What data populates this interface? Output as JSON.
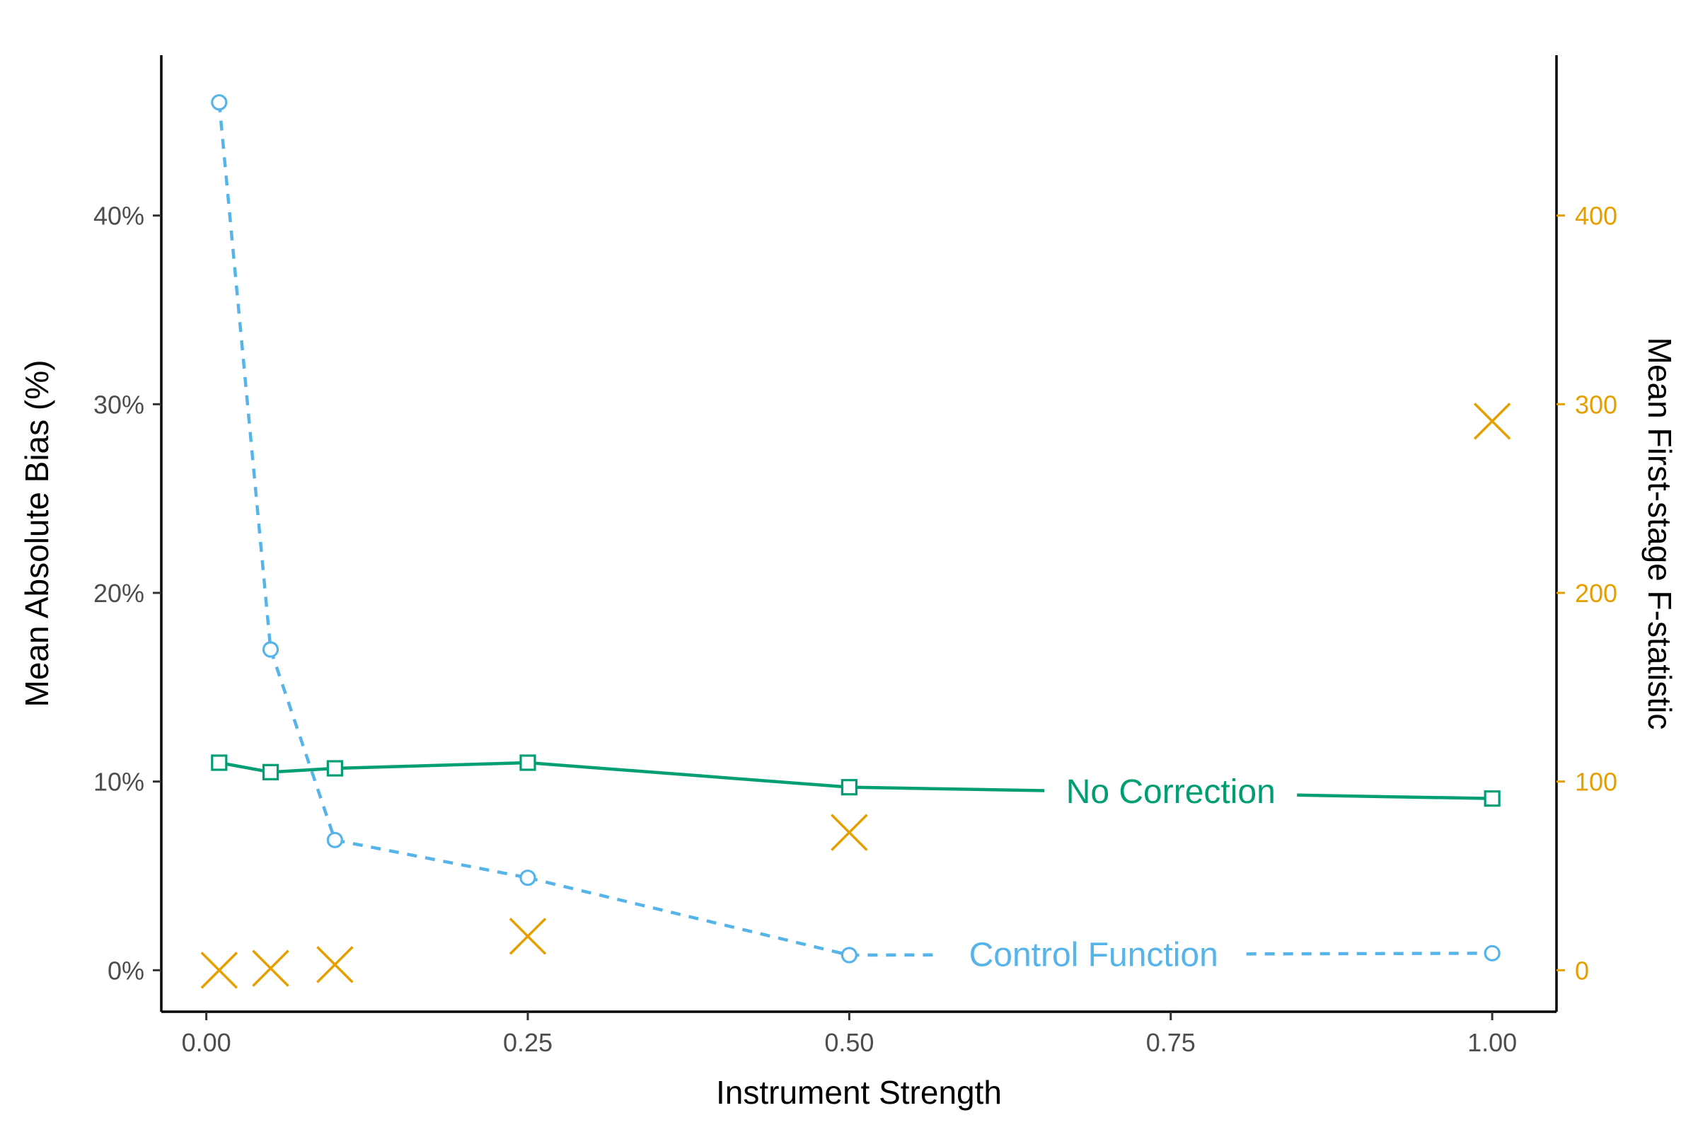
{
  "chart_data": {
    "type": "line",
    "x": [
      0.01,
      0.05,
      0.1,
      0.25,
      0.5,
      1.0
    ],
    "xlabel": "Instrument Strength",
    "ylabel": "Mean Absolute Bias (%)",
    "ylabel_right": "Mean First-stage F-statistic",
    "xlim": [
      -0.035,
      1.05
    ],
    "ylim": [
      -0.022,
      0.485
    ],
    "ylim_right": [
      -22,
      485
    ],
    "x_ticks": [
      0.0,
      0.25,
      0.5,
      0.75,
      1.0
    ],
    "x_tick_labels": [
      "0.00",
      "0.25",
      "0.50",
      "0.75",
      "1.00"
    ],
    "y_ticks": [
      0.0,
      0.1,
      0.2,
      0.3,
      0.4
    ],
    "y_tick_labels": [
      "0%",
      "10%",
      "20%",
      "30%",
      "40%"
    ],
    "y_right_ticks": [
      0,
      100,
      200,
      300,
      400
    ],
    "y_right_tick_labels": [
      "0",
      "100",
      "200",
      "300",
      "400"
    ],
    "grid": false,
    "series": [
      {
        "name": "No Correction",
        "axis": "left",
        "values": [
          0.11,
          0.105,
          0.107,
          0.11,
          0.097,
          0.091
        ],
        "line": "solid",
        "marker": "square",
        "color": "#009E73",
        "label_x": 0.75,
        "label_y": 0.095
      },
      {
        "name": "Control Function",
        "axis": "left",
        "values": [
          0.46,
          0.17,
          0.069,
          0.049,
          0.008,
          0.009
        ],
        "line": "dashed",
        "marker": "circle",
        "color": "#56B4E9",
        "label_x": 0.69,
        "label_y": 0.0085
      },
      {
        "name": "",
        "axis": "right",
        "values": [
          0,
          1,
          3,
          18,
          73,
          291
        ],
        "line": "none",
        "marker": "x",
        "color": "#E69F00"
      }
    ],
    "right_axis_color": "#E69F00"
  }
}
